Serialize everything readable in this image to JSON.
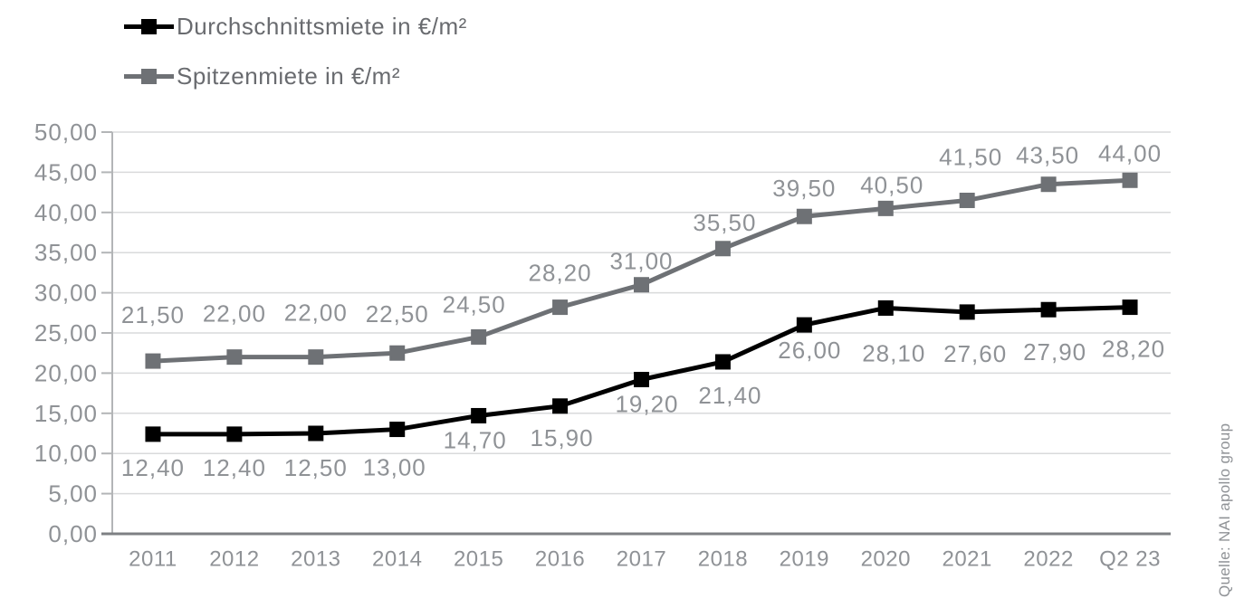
{
  "source_note": "Quelle: NAI apollo group",
  "legend": {
    "items": [
      {
        "label": "Durchschnittsmiete in €/m²",
        "color": "#000000"
      },
      {
        "label": "Spitzenmiete in €/m²",
        "color": "#6e7175"
      }
    ]
  },
  "colors": {
    "background": "#ffffff",
    "grid": "#d9dadb",
    "tick": "#b3b5b7",
    "axis_y": "#b3b5b7",
    "axis_x": "#7e8083",
    "label_text": "#8f9296",
    "legend_text": "#696b6f",
    "series_black": "#000000",
    "series_gray": "#6e7175"
  },
  "chart_data": {
    "type": "line",
    "title": "",
    "xlabel": "",
    "ylabel": "",
    "grid": true,
    "legend_position": "top-left",
    "ylim": [
      0,
      50
    ],
    "y_tick_step": 5,
    "y_tick_labels": [
      "0,00",
      "5,00",
      "10,00",
      "15,00",
      "20,00",
      "25,00",
      "30,00",
      "35,00",
      "40,00",
      "45,00",
      "50,00"
    ],
    "categories": [
      "2011",
      "2012",
      "2013",
      "2014",
      "2015",
      "2016",
      "2017",
      "2018",
      "2019",
      "2020",
      "2021",
      "2022",
      "Q2 23"
    ],
    "series": [
      {
        "name": "Durchschnittsmiete in €/m²",
        "color": "#000000",
        "marker": "square",
        "values": [
          12.4,
          12.4,
          12.5,
          13.0,
          14.7,
          15.9,
          19.2,
          21.4,
          26.0,
          28.1,
          27.6,
          27.9,
          28.2
        ],
        "labels": [
          "12,40",
          "12,40",
          "12,50",
          "13,00",
          "14,70",
          "15,90",
          "19,20",
          "21,40",
          "26,00",
          "28,10",
          "27,60",
          "27,90",
          "28,20"
        ],
        "label_offsets": [
          [
            0,
            37
          ],
          [
            0,
            37
          ],
          [
            0,
            38
          ],
          [
            -3,
            42
          ],
          [
            -4,
            27
          ],
          [
            2,
            35
          ],
          [
            6,
            27
          ],
          [
            8,
            37
          ],
          [
            6,
            28
          ],
          [
            9,
            50
          ],
          [
            9,
            46
          ],
          [
            7,
            47
          ],
          [
            4,
            46
          ]
        ]
      },
      {
        "name": "Spitzenmiete in €/m²",
        "color": "#6e7175",
        "marker": "square",
        "values": [
          21.5,
          22.0,
          22.0,
          22.5,
          24.5,
          28.2,
          31.0,
          35.5,
          39.5,
          40.5,
          41.5,
          43.5,
          44.0
        ],
        "labels": [
          "21,50",
          "22,00",
          "22,00",
          "22,50",
          "24,50",
          "28,20",
          "31,00",
          "35,50",
          "39,50",
          "40,50",
          "41,50",
          "43,50",
          "44,00"
        ],
        "label_offsets": [
          [
            0,
            -51
          ],
          [
            0,
            -48
          ],
          [
            0,
            -49
          ],
          [
            0,
            -43
          ],
          [
            -5,
            -36
          ],
          [
            0,
            -38
          ],
          [
            0,
            -26
          ],
          [
            2,
            -29
          ],
          [
            0,
            -31
          ],
          [
            7,
            -26
          ],
          [
            4,
            -48
          ],
          [
            -1,
            -32
          ],
          [
            0,
            -30
          ]
        ]
      }
    ]
  }
}
